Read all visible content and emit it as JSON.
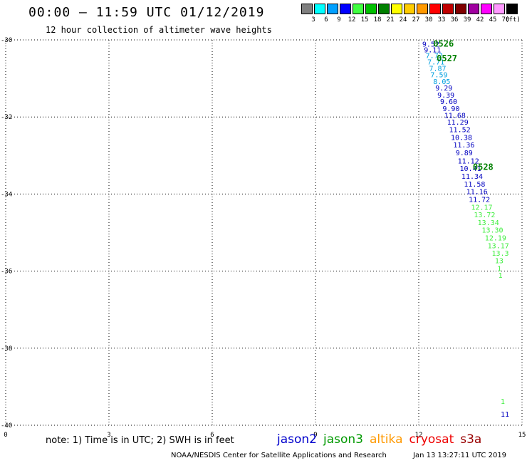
{
  "header": {
    "title": "00:00 – 11:59 UTC 01/12/2019",
    "subtitle": "12 hour collection of altimeter wave heights"
  },
  "color_scale": {
    "unit_label": "(ft)",
    "bins": [
      {
        "label": "3",
        "color": "#808080"
      },
      {
        "label": "6",
        "color": "#00ffff"
      },
      {
        "label": "9",
        "color": "#00a0ff"
      },
      {
        "label": "12",
        "color": "#0000ff"
      },
      {
        "label": "15",
        "color": "#40ff40"
      },
      {
        "label": "18",
        "color": "#00c000"
      },
      {
        "label": "21",
        "color": "#008000"
      },
      {
        "label": "24",
        "color": "#ffff00"
      },
      {
        "label": "27",
        "color": "#ffcc00"
      },
      {
        "label": "30",
        "color": "#ff9900"
      },
      {
        "label": "33",
        "color": "#ff0000"
      },
      {
        "label": "36",
        "color": "#c00000"
      },
      {
        "label": "39",
        "color": "#800000"
      },
      {
        "label": "42",
        "color": "#a000a0"
      },
      {
        "label": "45",
        "color": "#ff00ff"
      },
      {
        "label": "70",
        "color": "#ff99ff"
      },
      {
        "label": "",
        "color": "#000000"
      }
    ]
  },
  "map": {
    "lon_range": [
      0,
      15
    ],
    "lat_range": [
      -40,
      -30
    ],
    "x_ticks": [
      "0",
      "3",
      "6",
      "9",
      "12",
      "15"
    ],
    "y_ticks": [
      "-30",
      "-32",
      "-34",
      "-36",
      "-38",
      "-40"
    ],
    "gridlines": "dotted",
    "observations": [
      {
        "lon": 12.1,
        "lat": -30.1,
        "swh": "9.52",
        "color": "#0000c0"
      },
      {
        "lon": 12.15,
        "lat": -30.25,
        "swh": "9.11",
        "color": "#0000c0"
      },
      {
        "lon": 12.2,
        "lat": -30.4,
        "swh": "7.72",
        "color": "#00a0e0"
      },
      {
        "lon": 12.25,
        "lat": -30.56,
        "swh": "7.71",
        "color": "#00a0e0"
      },
      {
        "lon": 12.3,
        "lat": -30.73,
        "swh": "7.87",
        "color": "#00a0e0"
      },
      {
        "lon": 12.34,
        "lat": -30.9,
        "swh": "7.59",
        "color": "#00a0e0"
      },
      {
        "lon": 12.42,
        "lat": -31.07,
        "swh": "8.05",
        "color": "#00a0e0"
      },
      {
        "lon": 12.48,
        "lat": -31.24,
        "swh": "9.29",
        "color": "#0000c0"
      },
      {
        "lon": 12.54,
        "lat": -31.42,
        "swh": "9.39",
        "color": "#0000c0"
      },
      {
        "lon": 12.62,
        "lat": -31.59,
        "swh": "9.60",
        "color": "#0000c0"
      },
      {
        "lon": 12.69,
        "lat": -31.77,
        "swh": "9.90",
        "color": "#0000c0"
      },
      {
        "lon": 12.74,
        "lat": -31.95,
        "swh": "11.68",
        "color": "#0000c0"
      },
      {
        "lon": 12.82,
        "lat": -32.13,
        "swh": "11.29",
        "color": "#0000c0"
      },
      {
        "lon": 12.88,
        "lat": -32.32,
        "swh": "11.52",
        "color": "#0000c0"
      },
      {
        "lon": 12.93,
        "lat": -32.52,
        "swh": "10.38",
        "color": "#0000c0"
      },
      {
        "lon": 13.0,
        "lat": -32.72,
        "swh": "11.36",
        "color": "#0000c0"
      },
      {
        "lon": 13.07,
        "lat": -32.92,
        "swh": "9.89",
        "color": "#0000c0"
      },
      {
        "lon": 13.13,
        "lat": -33.13,
        "swh": "11.12",
        "color": "#0000c0"
      },
      {
        "lon": 13.19,
        "lat": -33.33,
        "swh": "10.41",
        "color": "#0000c0"
      },
      {
        "lon": 13.24,
        "lat": -33.53,
        "swh": "11.34",
        "color": "#0000c0"
      },
      {
        "lon": 13.31,
        "lat": -33.73,
        "swh": "11.58",
        "color": "#0000c0"
      },
      {
        "lon": 13.38,
        "lat": -33.93,
        "swh": "11.16",
        "color": "#0000c0"
      },
      {
        "lon": 13.45,
        "lat": -34.13,
        "swh": "11.72",
        "color": "#0000c0"
      },
      {
        "lon": 13.52,
        "lat": -34.33,
        "swh": "12.17",
        "color": "#40ee40"
      },
      {
        "lon": 13.6,
        "lat": -34.53,
        "swh": "13.72",
        "color": "#40ee40"
      },
      {
        "lon": 13.71,
        "lat": -34.73,
        "swh": "13.34",
        "color": "#40ee40"
      },
      {
        "lon": 13.83,
        "lat": -34.93,
        "swh": "13.30",
        "color": "#40ee40"
      },
      {
        "lon": 13.92,
        "lat": -35.13,
        "swh": "12.19",
        "color": "#40ee40"
      },
      {
        "lon": 14.0,
        "lat": -35.33,
        "swh": "13.17",
        "color": "#40ee40"
      },
      {
        "lon": 14.12,
        "lat": -35.53,
        "swh": "13.3",
        "color": "#40ee40"
      },
      {
        "lon": 14.21,
        "lat": -35.72,
        "swh": "13",
        "color": "#40ee40"
      },
      {
        "lon": 14.28,
        "lat": -35.92,
        "swh": "1",
        "color": "#40ee40"
      },
      {
        "lon": 14.31,
        "lat": -36.1,
        "swh": "1",
        "color": "#40ee40"
      },
      {
        "lon": 14.38,
        "lat": -39.37,
        "swh": "1",
        "color": "#40ee40"
      },
      {
        "lon": 14.38,
        "lat": -39.7,
        "swh": "11",
        "color": "#0000c0"
      }
    ],
    "track_labels": [
      {
        "text": "0526",
        "lon": 12.42,
        "lat": -30.1
      },
      {
        "text": "0527",
        "lon": 12.52,
        "lat": -30.48
      },
      {
        "text": "0528",
        "lon": 13.57,
        "lat": -33.3
      }
    ]
  },
  "footer": {
    "note": "note: 1) Time is in UTC; 2) SWH is in feet",
    "satellites": [
      {
        "name": "jason2",
        "color": "#0000cc"
      },
      {
        "name": "jason3",
        "color": "#009900"
      },
      {
        "name": "altika",
        "color": "#ff9900"
      },
      {
        "name": "cryosat",
        "color": "#ee0000"
      },
      {
        "name": "s3a",
        "color": "#990000"
      }
    ],
    "credit": "NOAA/NESDIS Center for Satellite Applications and Research",
    "timestamp": "Jan 13 13:27:11 UTC 2019"
  }
}
